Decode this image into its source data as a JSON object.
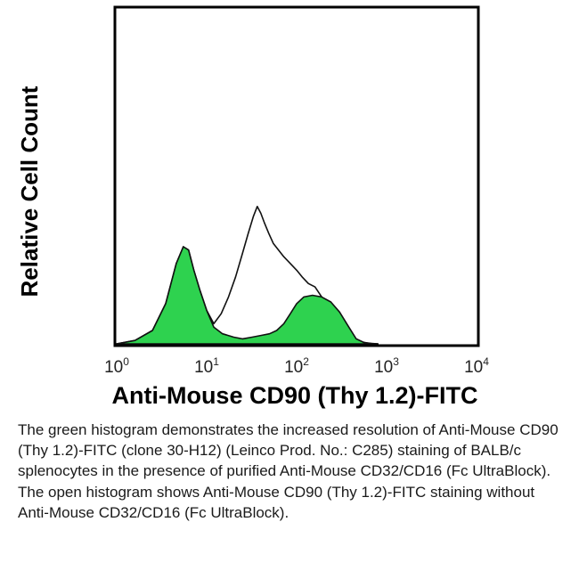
{
  "chart_data": {
    "type": "area",
    "title": "",
    "xlabel": "Anti-Mouse CD90 (Thy 1.2)-FITC",
    "ylabel": "Relative Cell Count",
    "x_scale": "log",
    "xlim": [
      1,
      10000
    ],
    "ylim": [
      0,
      1
    ],
    "x_ticks": [
      {
        "base": "10",
        "exp": "0",
        "value": 1
      },
      {
        "base": "10",
        "exp": "1",
        "value": 10
      },
      {
        "base": "10",
        "exp": "2",
        "value": 100
      },
      {
        "base": "10",
        "exp": "3",
        "value": 1000
      },
      {
        "base": "10",
        "exp": "4",
        "value": 10000
      }
    ],
    "grid": false,
    "legend": "none",
    "series": [
      {
        "fill": "open",
        "color": "#111111",
        "x": [
          1,
          1.6,
          2.5,
          3.5,
          4.6,
          5.5,
          6.3,
          7.2,
          8.4,
          10,
          12,
          14.5,
          17.5,
          21,
          25,
          29,
          33,
          36.5,
          40,
          44,
          49,
          55,
          63,
          72,
          85,
          100,
          115,
          135,
          160,
          190,
          230,
          280,
          340,
          420,
          520,
          650,
          800
        ],
        "y": [
          0.0,
          0.01,
          0.04,
          0.12,
          0.24,
          0.29,
          0.28,
          0.22,
          0.16,
          0.1,
          0.06,
          0.09,
          0.14,
          0.2,
          0.27,
          0.33,
          0.38,
          0.41,
          0.39,
          0.36,
          0.33,
          0.3,
          0.28,
          0.26,
          0.24,
          0.22,
          0.2,
          0.18,
          0.17,
          0.14,
          0.11,
          0.09,
          0.05,
          0.02,
          0.006,
          0.001,
          0.0
        ]
      },
      {
        "fill": "filled",
        "color": "#2ed24f",
        "x": [
          1,
          1.6,
          2.5,
          3.5,
          4.6,
          5.5,
          6.3,
          7.2,
          8.4,
          10,
          12,
          15,
          20,
          25,
          32,
          40,
          50,
          60,
          72,
          85,
          100,
          120,
          150,
          190,
          240,
          300,
          380,
          460,
          560,
          680,
          800
        ],
        "y": [
          0.0,
          0.01,
          0.04,
          0.12,
          0.24,
          0.29,
          0.28,
          0.22,
          0.16,
          0.1,
          0.05,
          0.03,
          0.02,
          0.015,
          0.02,
          0.025,
          0.03,
          0.04,
          0.06,
          0.09,
          0.12,
          0.14,
          0.145,
          0.14,
          0.125,
          0.095,
          0.05,
          0.015,
          0.004,
          0.001,
          0.0
        ]
      }
    ]
  },
  "caption": "The green histogram demonstrates the increased resolution of Anti-Mouse CD90 (Thy 1.2)-FITC (clone 30-H12) (Leinco Prod. No.: C285) staining of BALB/c splenocytes in the presence of purified Anti-Mouse CD32/CD16 (Fc UltraBlock). The open histogram shows Anti-Mouse CD90 (Thy 1.2)-FITC staining without Anti-Mouse CD32/CD16 (Fc UltraBlock)."
}
